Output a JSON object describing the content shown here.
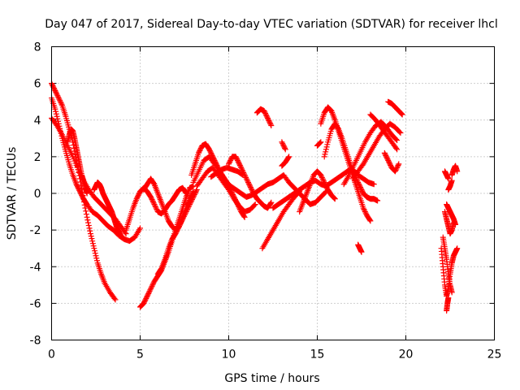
{
  "chart_data": {
    "type": "scatter",
    "title": "Day 047 of 2017, Sidereal Day-to-day VTEC variation (SDTVAR) for receiver lhcl",
    "xlabel": "GPS time / hours",
    "ylabel": "SDTVAR / TECUs",
    "xlim": [
      0,
      25
    ],
    "ylim": [
      -8,
      8
    ],
    "xticks": [
      0,
      5,
      10,
      15,
      20,
      25
    ],
    "yticks": [
      -8,
      -6,
      -4,
      -2,
      0,
      2,
      4,
      6,
      8
    ],
    "grid": true,
    "marker": "+",
    "series": [
      {
        "name": "SDTVAR",
        "color": "#ff0000",
        "tracks": [
          {
            "x": [
              0.0,
              0.2,
              0.4,
              0.6,
              0.8,
              1.0,
              1.2,
              1.4,
              1.6,
              1.8,
              2.0,
              2.2,
              2.4,
              2.6,
              2.8,
              3.0,
              3.3,
              3.6
            ],
            "y": [
              6.0,
              5.6,
              5.2,
              4.8,
              4.2,
              3.5,
              2.8,
              1.8,
              0.8,
              -0.3,
              -1.3,
              -2.2,
              -3.0,
              -3.8,
              -4.4,
              -4.9,
              -5.4,
              -5.8
            ]
          },
          {
            "x": [
              0.0,
              0.2,
              0.4,
              0.6,
              0.8,
              1.0,
              1.2,
              1.4,
              1.6,
              1.8,
              2.0,
              2.3,
              2.6,
              2.9,
              3.2,
              3.5,
              3.8,
              4.1,
              4.4,
              4.7,
              5.0
            ],
            "y": [
              5.2,
              4.6,
              3.8,
              3.0,
              2.3,
              1.6,
              1.0,
              0.5,
              0.1,
              -0.3,
              -0.6,
              -1.0,
              -1.2,
              -1.5,
              -1.8,
              -2.0,
              -2.3,
              -2.5,
              -2.6,
              -2.4,
              -1.9
            ]
          },
          {
            "x": [
              0.0,
              0.3,
              0.6,
              0.9,
              1.2,
              1.5,
              1.8,
              2.1,
              2.4,
              2.7,
              3.0,
              3.3,
              3.6,
              3.9,
              4.2
            ],
            "y": [
              4.1,
              3.7,
              3.2,
              2.6,
              2.0,
              1.3,
              0.7,
              0.2,
              -0.2,
              -0.5,
              -0.8,
              -1.1,
              -1.4,
              -1.8,
              -2.2
            ]
          },
          {
            "x": [
              0.9,
              1.0,
              1.1,
              1.2,
              1.3,
              1.4,
              1.5,
              1.6,
              1.7,
              1.8,
              1.9,
              2.0
            ],
            "y": [
              2.8,
              3.2,
              3.5,
              3.4,
              3.0,
              2.5,
              2.0,
              1.5,
              1.0,
              0.7,
              0.3,
              0.0
            ]
          },
          {
            "x": [
              2.4,
              2.5,
              2.6,
              2.7,
              2.8,
              2.9,
              3.0,
              3.1,
              3.2,
              3.3,
              3.4,
              3.5,
              3.6,
              3.7,
              3.8,
              3.9,
              4.0
            ],
            "y": [
              0.2,
              0.4,
              0.6,
              0.5,
              0.3,
              0.0,
              -0.2,
              -0.4,
              -0.6,
              -0.8,
              -1.0,
              -1.3,
              -1.6,
              -1.9,
              -2.1,
              -2.3,
              -2.4
            ]
          },
          {
            "x": [
              4.2,
              4.4,
              4.6,
              4.8,
              5.0,
              5.2,
              5.4,
              5.6,
              5.8,
              6.0,
              6.2,
              6.4,
              6.6,
              6.8,
              7.0,
              7.2,
              7.4,
              7.6
            ],
            "y": [
              -2.0,
              -1.4,
              -0.8,
              -0.3,
              0.1,
              0.3,
              0.1,
              -0.2,
              -0.6,
              -1.0,
              -1.1,
              -0.9,
              -0.6,
              -0.4,
              -0.1,
              0.2,
              0.3,
              0.0
            ]
          },
          {
            "x": [
              5.0,
              5.2,
              5.4,
              5.6,
              5.8,
              6.0,
              6.2,
              6.4,
              6.6,
              6.8,
              7.0,
              7.2,
              7.4,
              7.6,
              7.8,
              8.0
            ],
            "y": [
              -6.2,
              -6.0,
              -5.6,
              -5.2,
              -4.8,
              -4.5,
              -4.2,
              -3.7,
              -3.2,
              -2.6,
              -2.0,
              -1.4,
              -0.8,
              -0.2,
              0.3,
              0.4
            ]
          },
          {
            "x": [
              5.2,
              5.4,
              5.6,
              5.8,
              6.0,
              6.2,
              6.4,
              6.6,
              6.8,
              7.0,
              7.2,
              7.4,
              7.6,
              7.8,
              8.0,
              8.2
            ],
            "y": [
              0.2,
              0.5,
              0.8,
              0.5,
              0.0,
              -0.5,
              -1.0,
              -1.5,
              -1.8,
              -2.0,
              -1.8,
              -1.4,
              -1.0,
              -0.6,
              -0.2,
              0.2
            ]
          },
          {
            "x": [
              6.0,
              6.2,
              6.4,
              6.6,
              6.8,
              7.0,
              7.2,
              7.4,
              7.6,
              7.8,
              8.0
            ],
            "y": [
              -4.4,
              -4.1,
              -3.6,
              -3.0,
              -2.5,
              -2.2,
              -1.8,
              -1.3,
              -0.8,
              -0.3,
              0.1
            ]
          },
          {
            "x": [
              8.0,
              8.3,
              8.6,
              8.9,
              9.2,
              9.5,
              9.8,
              10.1,
              10.4,
              10.7,
              11.0,
              11.3,
              11.6,
              11.9,
              12.2,
              12.5,
              12.8,
              13.1,
              13.4,
              13.7,
              14.0,
              14.3,
              14.6,
              14.9,
              15.2,
              15.5
            ],
            "y": [
              0.6,
              1.2,
              1.8,
              2.0,
              1.6,
              1.2,
              0.7,
              0.4,
              0.2,
              0.0,
              -0.2,
              -0.1,
              0.1,
              0.3,
              0.5,
              0.6,
              0.8,
              1.0,
              0.6,
              0.3,
              0.0,
              -0.3,
              -0.6,
              -0.5,
              -0.2,
              0.1
            ]
          },
          {
            "x": [
              7.9,
              8.1,
              8.3,
              8.5,
              8.7,
              8.9,
              9.1,
              9.3,
              9.5,
              9.7,
              9.9,
              10.1,
              10.3,
              10.5,
              10.7,
              10.9
            ],
            "y": [
              1.0,
              1.6,
              2.2,
              2.6,
              2.7,
              2.4,
              2.0,
              1.6,
              1.2,
              0.9,
              0.6,
              0.2,
              -0.2,
              -0.6,
              -1.0,
              -1.3
            ]
          },
          {
            "x": [
              8.2,
              8.5,
              8.8,
              9.1,
              9.4,
              9.7,
              10.0,
              10.3,
              10.6,
              10.9,
              11.2,
              11.5
            ],
            "y": [
              0.4,
              0.8,
              1.2,
              1.4,
              1.0,
              0.6,
              0.2,
              -0.3,
              -0.7,
              -1.0,
              -0.9,
              -0.6
            ]
          },
          {
            "x": [
              9.0,
              9.3,
              9.6,
              9.9,
              10.2,
              10.5,
              10.8
            ],
            "y": [
              0.9,
              1.1,
              1.3,
              1.4,
              1.3,
              1.2,
              1.0
            ]
          },
          {
            "x": [
              10.0,
              10.2,
              10.4,
              10.6,
              10.8,
              11.0,
              11.2,
              11.4,
              11.6,
              11.8,
              12.0,
              12.2,
              12.4
            ],
            "y": [
              1.6,
              2.0,
              2.0,
              1.6,
              1.2,
              0.8,
              0.4,
              0.0,
              -0.3,
              -0.5,
              -0.7,
              -0.8,
              -0.5
            ]
          },
          {
            "x": [
              11.6,
              11.8,
              12.0,
              12.2,
              12.4
            ],
            "y": [
              4.4,
              4.6,
              4.5,
              4.1,
              3.7
            ]
          },
          {
            "x": [
              11.9,
              12.2,
              12.5,
              12.8,
              13.1,
              13.4,
              13.7,
              14.0
            ],
            "y": [
              -3.0,
              -2.5,
              -2.0,
              -1.5,
              -1.0,
              -0.6,
              -0.2,
              0.1
            ]
          },
          {
            "x": [
              12.5,
              12.8,
              13.1,
              13.4,
              13.7,
              14.0,
              14.3,
              14.6,
              14.9,
              15.2,
              15.5,
              15.8,
              16.1,
              16.4,
              16.7,
              17.0,
              17.3,
              17.6,
              17.9,
              18.2
            ],
            "y": [
              -0.8,
              -0.6,
              -0.4,
              -0.2,
              0.0,
              0.2,
              0.4,
              0.6,
              0.7,
              0.5,
              0.4,
              0.6,
              0.8,
              1.0,
              1.2,
              1.3,
              1.0,
              0.8,
              0.6,
              0.5
            ]
          },
          {
            "x": [
              13.0,
              13.2,
              13.4
            ],
            "y": [
              1.5,
              1.7,
              2.0
            ]
          },
          {
            "x": [
              13.0,
              13.2
            ],
            "y": [
              2.8,
              2.4
            ]
          },
          {
            "x": [
              14.0,
              14.2,
              14.4,
              14.6,
              14.8,
              15.0,
              15.2,
              15.4,
              15.6,
              15.8,
              16.0
            ],
            "y": [
              -1.0,
              -0.5,
              0.0,
              0.5,
              1.0,
              1.2,
              1.0,
              0.6,
              0.2,
              -0.1,
              -0.3
            ]
          },
          {
            "x": [
              15.2,
              15.4,
              15.6,
              15.8,
              16.0,
              16.2,
              16.4,
              16.6,
              16.8,
              17.0,
              17.2,
              17.4,
              17.6,
              17.8,
              18.0
            ],
            "y": [
              3.8,
              4.4,
              4.7,
              4.5,
              4.0,
              3.4,
              2.8,
              2.2,
              1.6,
              1.0,
              0.4,
              -0.2,
              -0.8,
              -1.2,
              -1.5
            ]
          },
          {
            "x": [
              15.4,
              15.6,
              15.8,
              16.0,
              16.2,
              16.4,
              16.6,
              16.8,
              17.0,
              17.2,
              17.4,
              17.6,
              17.8,
              18.0,
              18.2,
              18.4
            ],
            "y": [
              2.0,
              2.8,
              3.5,
              3.8,
              3.5,
              3.0,
              2.4,
              1.8,
              1.2,
              0.8,
              0.4,
              0.0,
              -0.2,
              -0.3,
              -0.3,
              -0.4
            ]
          },
          {
            "x": [
              15.0,
              15.2
            ],
            "y": [
              2.6,
              2.8
            ]
          },
          {
            "x": [
              16.5,
              16.8,
              17.1,
              17.4,
              17.7,
              18.0,
              18.3,
              18.6,
              18.9,
              19.2,
              19.5
            ],
            "y": [
              0.5,
              1.0,
              1.6,
              2.2,
              2.8,
              3.3,
              3.7,
              3.9,
              3.6,
              3.2,
              2.9
            ]
          },
          {
            "x": [
              17.0,
              17.3,
              17.6,
              17.9,
              18.2,
              18.5,
              18.8,
              19.1,
              19.4,
              19.7
            ],
            "y": [
              0.8,
              1.2,
              1.6,
              2.1,
              2.6,
              3.1,
              3.5,
              3.8,
              3.6,
              3.3
            ]
          },
          {
            "x": [
              18.0,
              18.3,
              18.6,
              18.9,
              19.2,
              19.5
            ],
            "y": [
              4.3,
              4.0,
              3.6,
              3.2,
              2.8,
              2.4
            ]
          },
          {
            "x": [
              19.0,
              19.2,
              19.4,
              19.6,
              19.8
            ],
            "y": [
              5.0,
              4.9,
              4.7,
              4.5,
              4.3
            ]
          },
          {
            "x": [
              18.8,
              19.0,
              19.2,
              19.4,
              19.6
            ],
            "y": [
              2.2,
              1.8,
              1.4,
              1.2,
              1.6
            ]
          },
          {
            "x": [
              17.3,
              17.4,
              17.5
            ],
            "y": [
              -2.8,
              -3.0,
              -3.2
            ]
          },
          {
            "x": [
              22.0,
              22.1,
              22.2,
              22.3,
              22.4,
              22.5,
              22.6,
              22.7,
              22.8,
              22.9
            ],
            "y": [
              -3.0,
              -4.0,
              -5.0,
              -5.6,
              -5.2,
              -4.4,
              -3.8,
              -3.4,
              -3.2,
              -3.0
            ]
          },
          {
            "x": [
              22.1,
              22.2,
              22.3,
              22.4,
              22.5,
              22.6
            ],
            "y": [
              -2.4,
              -3.0,
              -3.6,
              -4.4,
              -5.0,
              -5.4
            ]
          },
          {
            "x": [
              22.2,
              22.3,
              22.4,
              22.5,
              22.6,
              22.7
            ],
            "y": [
              -1.0,
              -1.4,
              -1.8,
              -2.2,
              -2.0,
              -1.6
            ]
          },
          {
            "x": [
              22.3,
              22.35,
              22.4
            ],
            "y": [
              -6.4,
              -6.0,
              -5.7
            ]
          },
          {
            "x": [
              22.3,
              22.4,
              22.5,
              22.6,
              22.7,
              22.8
            ],
            "y": [
              -0.6,
              -0.8,
              -1.0,
              -1.2,
              -1.4,
              -1.7
            ]
          },
          {
            "x": [
              22.2,
              22.3,
              22.4
            ],
            "y": [
              1.2,
              1.0,
              0.8
            ]
          },
          {
            "x": [
              22.6,
              22.7,
              22.8,
              22.9
            ],
            "y": [
              1.0,
              1.3,
              1.5,
              1.2
            ]
          },
          {
            "x": [
              22.4,
              22.5,
              22.6
            ],
            "y": [
              0.2,
              0.4,
              0.7
            ]
          }
        ]
      }
    ]
  }
}
